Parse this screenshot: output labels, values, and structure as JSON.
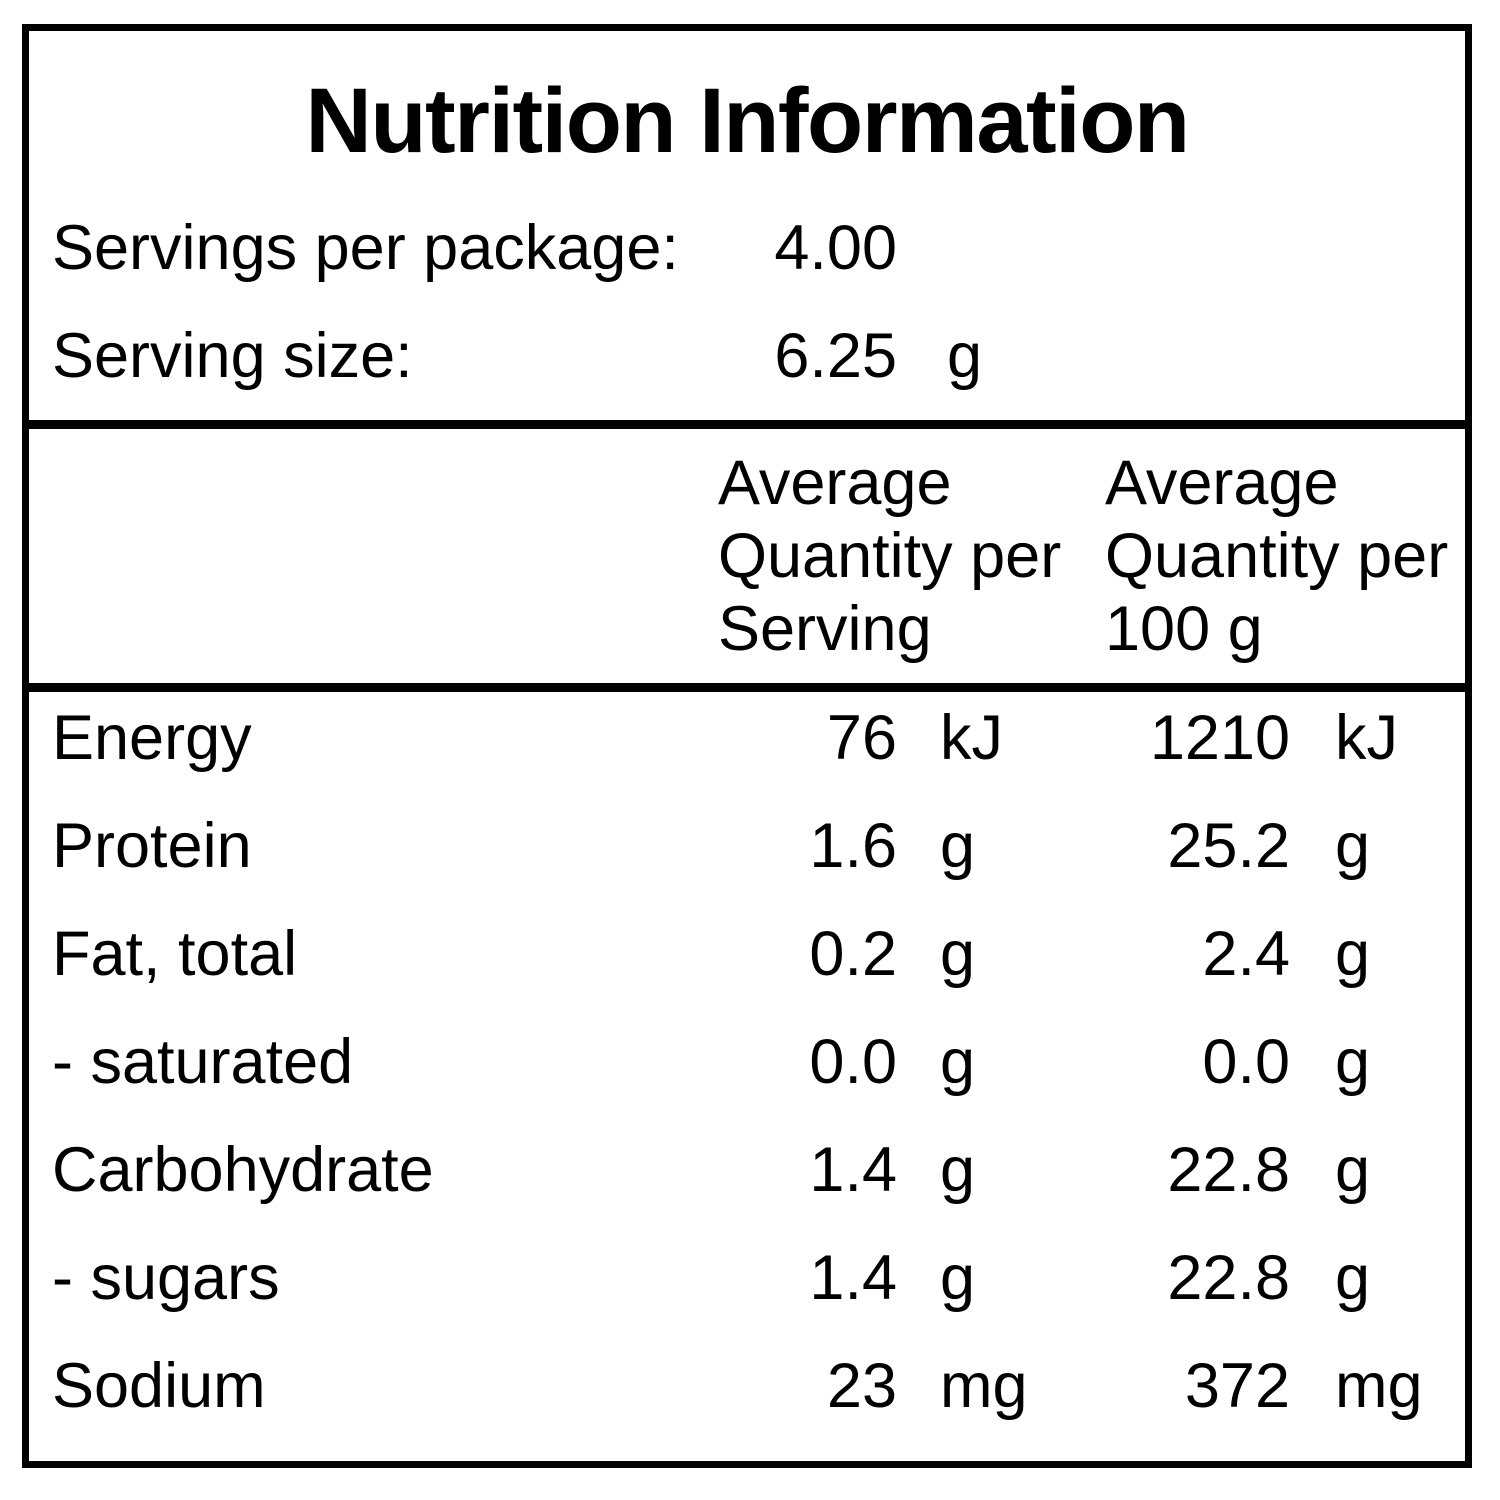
{
  "label": {
    "title": "Nutrition Information",
    "servings_per_package": {
      "label": "Servings per package:",
      "value": "4.00"
    },
    "serving_size": {
      "label": "Serving size:",
      "value": "6.25",
      "unit": "g"
    },
    "column_headers": {
      "per_serving": "Average\nQuantity per\nServing",
      "per_100g": "Average\nQuantity per\n100 g"
    },
    "rows": [
      {
        "name": "Energy",
        "serving_value": "76",
        "serving_unit": "kJ",
        "per100_value": "1210",
        "per100_unit": "kJ"
      },
      {
        "name": "Protein",
        "serving_value": "1.6",
        "serving_unit": "g",
        "per100_value": "25.2",
        "per100_unit": "g"
      },
      {
        "name": "Fat, total",
        "serving_value": "0.2",
        "serving_unit": "g",
        "per100_value": "2.4",
        "per100_unit": "g"
      },
      {
        "name": "- saturated",
        "serving_value": "0.0",
        "serving_unit": "g",
        "per100_value": "0.0",
        "per100_unit": "g"
      },
      {
        "name": "Carbohydrate",
        "serving_value": "1.4",
        "serving_unit": "g",
        "per100_value": "22.8",
        "per100_unit": "g"
      },
      {
        "name": "- sugars",
        "serving_value": "1.4",
        "serving_unit": "g",
        "per100_value": "22.8",
        "per100_unit": "g"
      },
      {
        "name": "Sodium",
        "serving_value": "23",
        "serving_unit": "mg",
        "per100_value": "372",
        "per100_unit": "mg"
      }
    ],
    "colors": {
      "border": "#000000",
      "text": "#000000",
      "background": "#ffffff"
    }
  }
}
